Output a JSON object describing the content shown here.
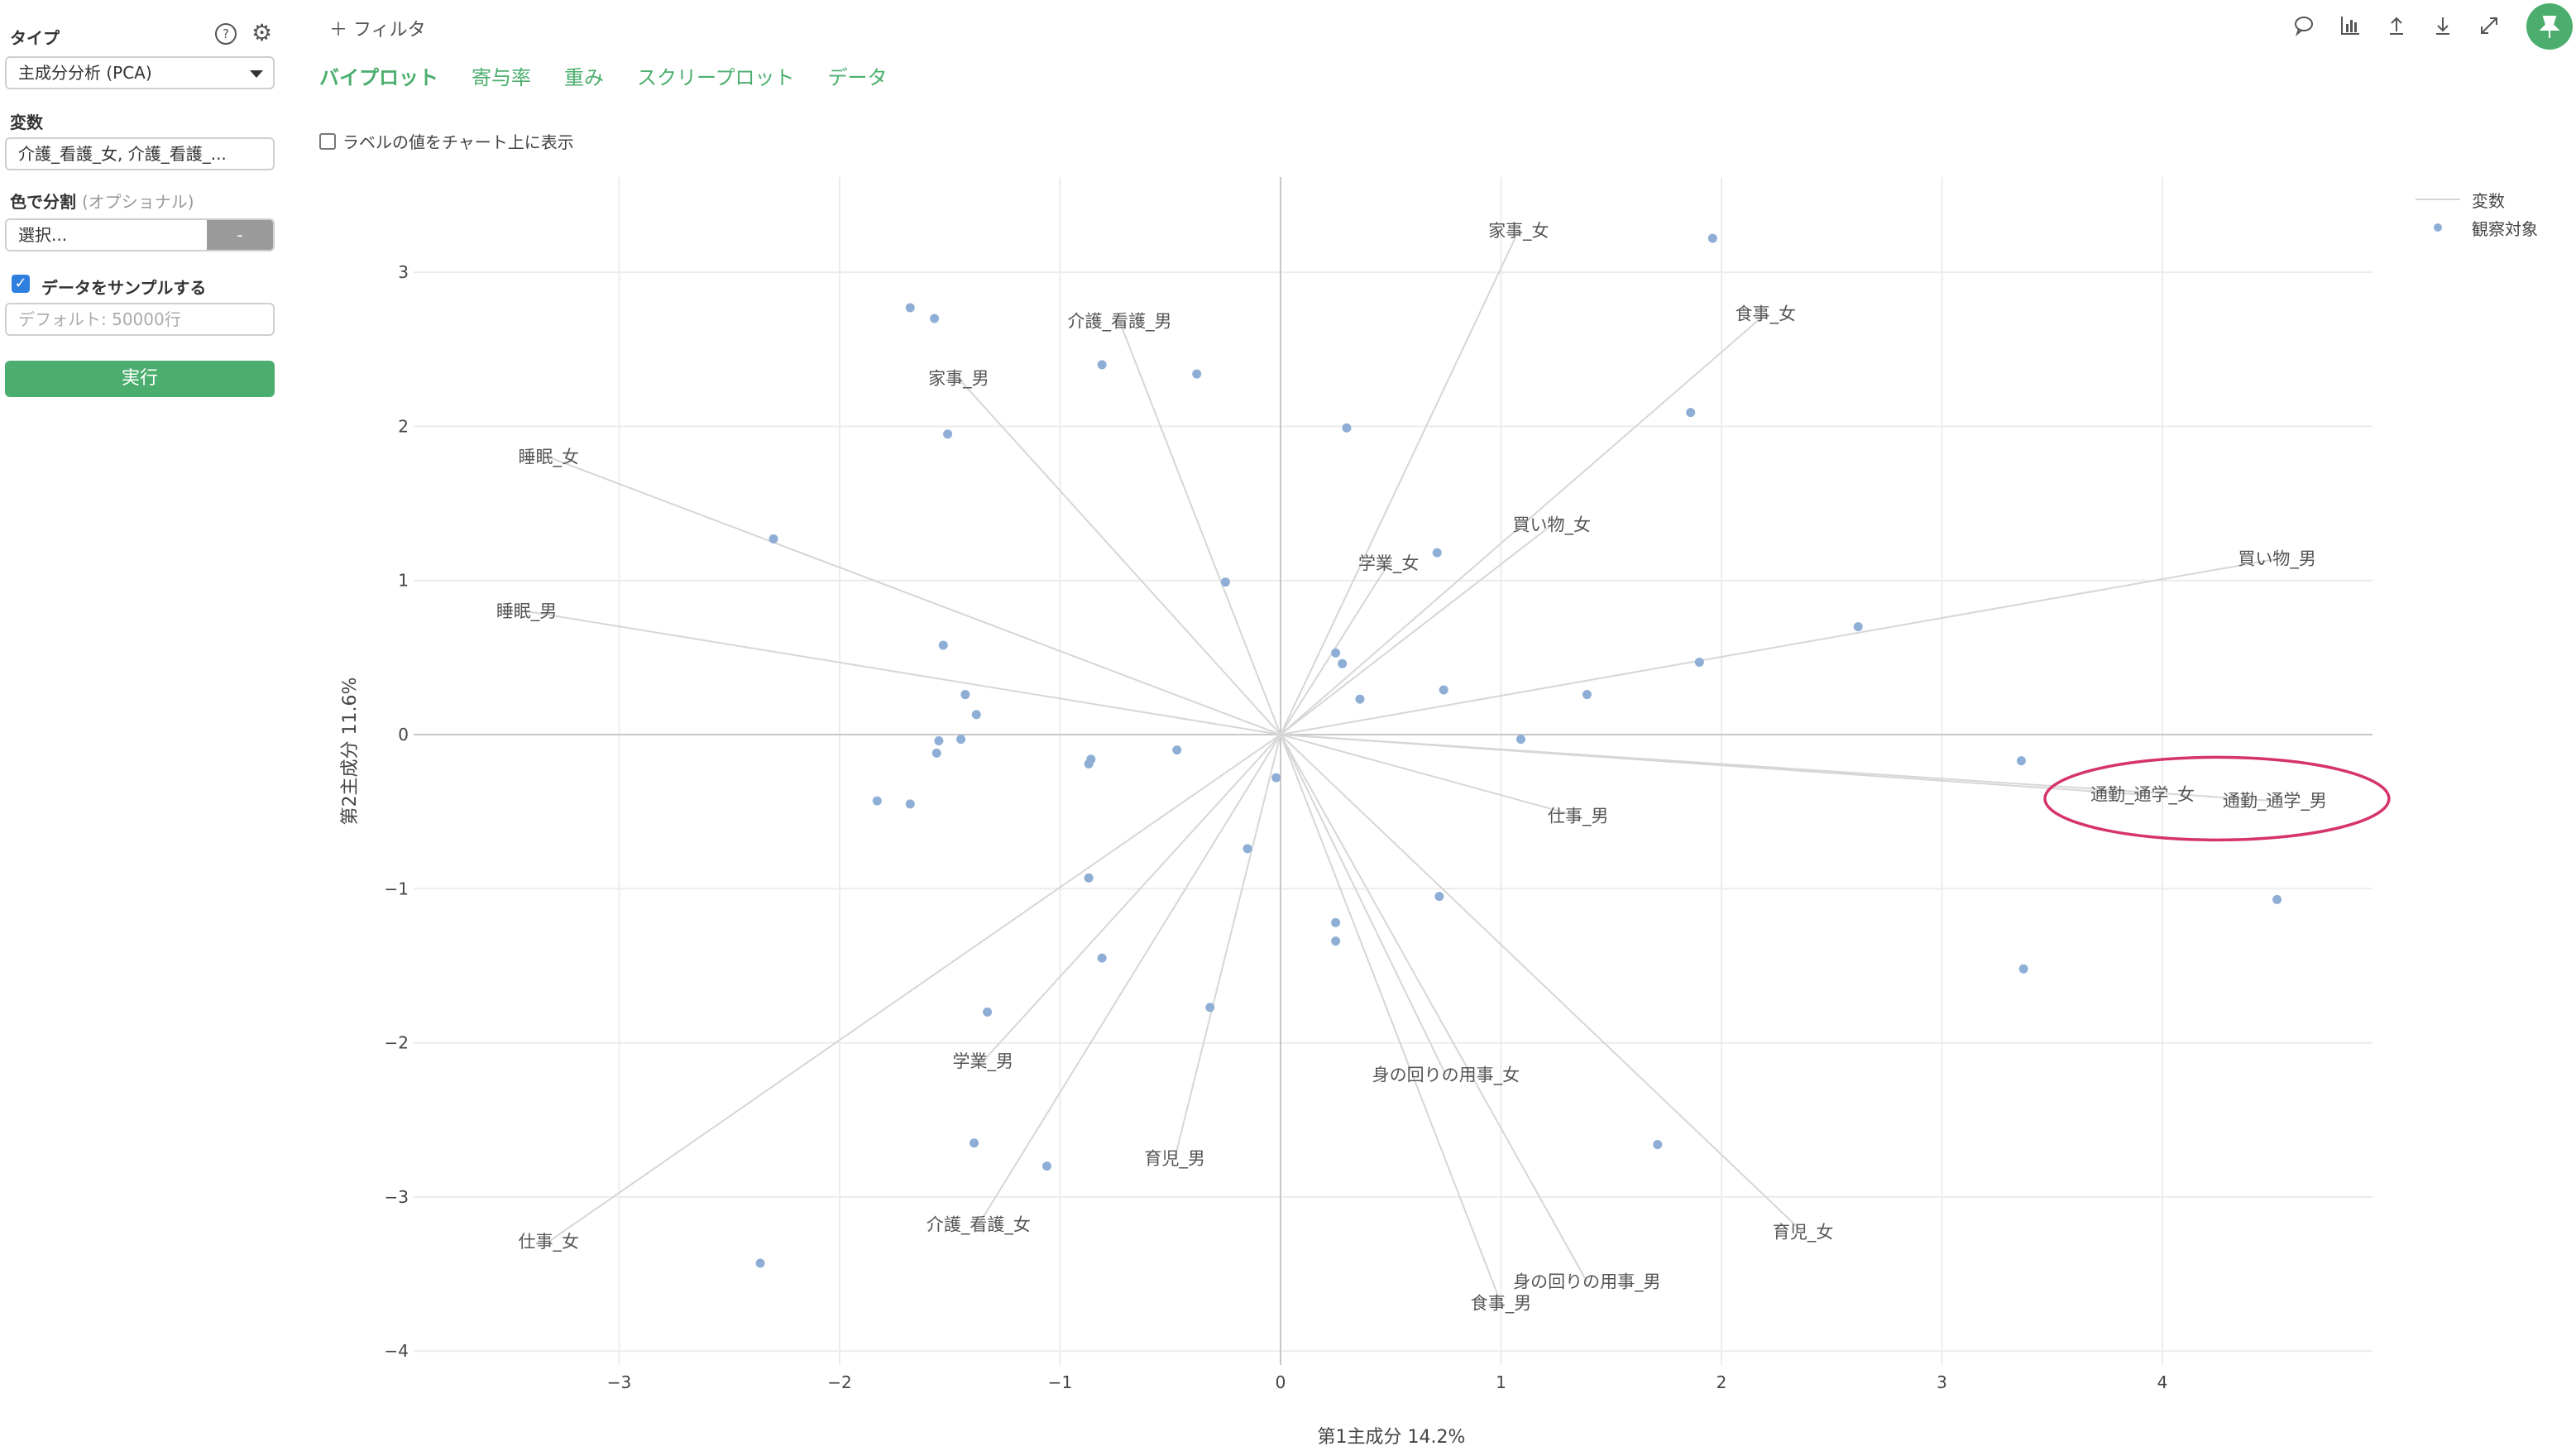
{
  "sidebar": {
    "type_label": "タイプ",
    "type_value": "主成分分析 (PCA)",
    "variables_label": "変数",
    "variables_value": "介護_看護_女, 介護_看護_...",
    "color_label": "色で分割",
    "color_optional": "(オプショナル)",
    "color_placeholder": "選択...",
    "color_button": "-",
    "sample_label": "データをサンプルする",
    "sample_checked": true,
    "sample_placeholder": "デフォルト: 50000行",
    "run_button": "実行",
    "help_icon": "question-circle-icon",
    "settings_icon": "gear-icon"
  },
  "header": {
    "filter_label": "フィルタ",
    "tabs": [
      "バイプロット",
      "寄与率",
      "重み",
      "スクリープロット",
      "データ"
    ],
    "active_tab": 0,
    "show_labels_option": "ラベルの値をチャート上に表示",
    "toolbar_icons": [
      "comment-icon",
      "bar-chart-icon",
      "upload-icon",
      "download-icon",
      "expand-icon",
      "pin-icon"
    ]
  },
  "colors": {
    "accent": "#4cae6e",
    "point": "#8eaed6",
    "loading_line": "#d6d6d6",
    "highlight": "#d6336c"
  },
  "chart_data": {
    "type": "scatter",
    "title": "",
    "xlabel": "第1主成分 14.2%",
    "ylabel": "第2主成分 11.6%",
    "xlim": [
      -3.75,
      5.0
    ],
    "ylim": [
      -4.1,
      3.4
    ],
    "xticks": [
      -3,
      -2,
      -1,
      0,
      1,
      2,
      3,
      4
    ],
    "yticks": [
      -4,
      -3,
      -2,
      -1,
      0,
      1,
      2,
      3
    ],
    "xtick_labels": [
      "−3",
      "−2",
      "−1",
      "0",
      "1",
      "2",
      "3",
      "4"
    ],
    "ytick_labels": [
      "−4",
      "−3",
      "−2",
      "−1",
      "0",
      "1",
      "2",
      "3"
    ],
    "grid": true,
    "legend": {
      "position": "top-right",
      "entries": [
        "変数",
        "観察対象"
      ]
    },
    "series": [
      {
        "name": "観察対象",
        "kind": "points",
        "points": [
          [
            1.96,
            3.22
          ],
          [
            -1.68,
            2.77
          ],
          [
            -1.57,
            2.7
          ],
          [
            -0.81,
            2.4
          ],
          [
            -0.38,
            2.34
          ],
          [
            1.86,
            2.09
          ],
          [
            0.3,
            1.99
          ],
          [
            -1.51,
            1.95
          ],
          [
            -2.3,
            1.27
          ],
          [
            0.71,
            1.18
          ],
          [
            -0.25,
            0.99
          ],
          [
            2.62,
            0.7
          ],
          [
            -1.53,
            0.58
          ],
          [
            0.25,
            0.53
          ],
          [
            1.9,
            0.47
          ],
          [
            0.28,
            0.46
          ],
          [
            0.74,
            0.29
          ],
          [
            -1.43,
            0.26
          ],
          [
            1.39,
            0.26
          ],
          [
            0.36,
            0.23
          ],
          [
            -1.38,
            0.13
          ],
          [
            1.09,
            -0.03
          ],
          [
            -1.55,
            -0.04
          ],
          [
            -1.45,
            -0.03
          ],
          [
            -0.47,
            -0.1
          ],
          [
            -1.56,
            -0.12
          ],
          [
            -0.86,
            -0.16
          ],
          [
            -0.87,
            -0.19
          ],
          [
            3.36,
            -0.17
          ],
          [
            -0.02,
            -0.28
          ],
          [
            -1.83,
            -0.43
          ],
          [
            -1.68,
            -0.45
          ],
          [
            -0.15,
            -0.74
          ],
          [
            -0.87,
            -0.93
          ],
          [
            0.72,
            -1.05
          ],
          [
            4.52,
            -1.07
          ],
          [
            0.25,
            -1.22
          ],
          [
            0.25,
            -1.34
          ],
          [
            -0.81,
            -1.45
          ],
          [
            3.37,
            -1.52
          ],
          [
            -0.32,
            -1.77
          ],
          [
            -1.33,
            -1.8
          ],
          [
            -1.39,
            -2.65
          ],
          [
            1.71,
            -2.66
          ],
          [
            -1.06,
            -2.8
          ],
          [
            -2.36,
            -3.43
          ]
        ]
      },
      {
        "name": "変数",
        "kind": "loadings",
        "vectors": [
          {
            "label": "家事_女",
            "x": 1.08,
            "y": 3.27
          },
          {
            "label": "食事_女",
            "x": 2.2,
            "y": 2.73
          },
          {
            "label": "介護_看護_男",
            "x": -0.73,
            "y": 2.68
          },
          {
            "label": "家事_男",
            "x": -1.46,
            "y": 2.31
          },
          {
            "label": "睡眠_女",
            "x": -3.32,
            "y": 1.8
          },
          {
            "label": "睡眠_男",
            "x": -3.42,
            "y": 0.8
          },
          {
            "label": "買い物_女",
            "x": 1.23,
            "y": 1.36
          },
          {
            "label": "学業_女",
            "x": 0.49,
            "y": 1.11
          },
          {
            "label": "買い物_男",
            "x": 4.52,
            "y": 1.14
          },
          {
            "label": "通勤_通学_女",
            "x": 3.91,
            "y": -0.39
          },
          {
            "label": "通勤_通学_男",
            "x": 4.51,
            "y": -0.43
          },
          {
            "label": "仕事_男",
            "x": 1.35,
            "y": -0.53
          },
          {
            "label": "学業_男",
            "x": -1.35,
            "y": -2.12
          },
          {
            "label": "身の回りの用事_女",
            "x": 0.75,
            "y": -2.21
          },
          {
            "label": "育児_男",
            "x": -0.48,
            "y": -2.75
          },
          {
            "label": "介護_看護_女",
            "x": -1.37,
            "y": -3.18
          },
          {
            "label": "育児_女",
            "x": 2.37,
            "y": -3.23
          },
          {
            "label": "仕事_女",
            "x": -3.32,
            "y": -3.29
          },
          {
            "label": "身の回りの用事_男",
            "x": 1.39,
            "y": -3.55
          },
          {
            "label": "食事_男",
            "x": 1.0,
            "y": -3.69
          }
        ]
      }
    ],
    "highlight": {
      "shape": "ellipse",
      "around": [
        "通勤_通学_女",
        "通勤_通学_男"
      ]
    }
  }
}
